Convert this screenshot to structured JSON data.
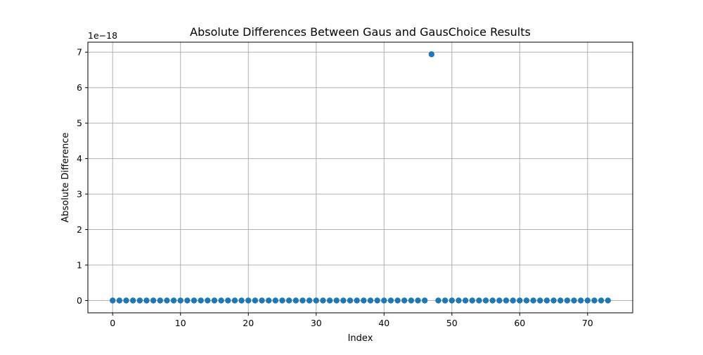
{
  "chart_data": {
    "type": "scatter",
    "title": "Absolute Differences Between Gaus and GausChoice Results",
    "xlabel": "Index",
    "ylabel": "Absolute Difference",
    "y_offset_label": "1e−18",
    "xlim": [
      -3.65,
      76.65
    ],
    "ylim": [
      -0.347,
      7.282
    ],
    "x_ticks": [
      0,
      10,
      20,
      30,
      40,
      50,
      60,
      70
    ],
    "x_tick_labels": [
      "0",
      "10",
      "20",
      "30",
      "40",
      "50",
      "60",
      "70"
    ],
    "y_ticks": [
      0,
      1,
      2,
      3,
      4,
      5,
      6,
      7
    ],
    "y_tick_labels": [
      "0",
      "1",
      "2",
      "3",
      "4",
      "5",
      "6",
      "7"
    ],
    "grid": true,
    "marker_color": "#1f77b4",
    "series": [
      {
        "x": [
          0,
          1,
          2,
          3,
          4,
          5,
          6,
          7,
          8,
          9,
          10,
          11,
          12,
          13,
          14,
          15,
          16,
          17,
          18,
          19,
          20,
          21,
          22,
          23,
          24,
          25,
          26,
          27,
          28,
          29,
          30,
          31,
          32,
          33,
          34,
          35,
          36,
          37,
          38,
          39,
          40,
          41,
          42,
          43,
          44,
          45,
          46,
          47,
          48,
          49,
          50,
          51,
          52,
          53,
          54,
          55,
          56,
          57,
          58,
          59,
          60,
          61,
          62,
          63,
          64,
          65,
          66,
          67,
          68,
          69,
          70,
          71,
          72,
          73
        ],
        "y": [
          0,
          0,
          0,
          0,
          0,
          0,
          0,
          0,
          0,
          0,
          0,
          0,
          0,
          0,
          0,
          0,
          0,
          0,
          0,
          0,
          0,
          0,
          0,
          0,
          0,
          0,
          0,
          0,
          0,
          0,
          0,
          0,
          0,
          0,
          0,
          0,
          0,
          0,
          0,
          0,
          0,
          0,
          0,
          0,
          0,
          0,
          0,
          6.94,
          0,
          0,
          0,
          0,
          0,
          0,
          0,
          0,
          0,
          0,
          0,
          0,
          0,
          0,
          0,
          0,
          0,
          0,
          0,
          0,
          0,
          0,
          0,
          0,
          0,
          0
        ]
      }
    ]
  }
}
